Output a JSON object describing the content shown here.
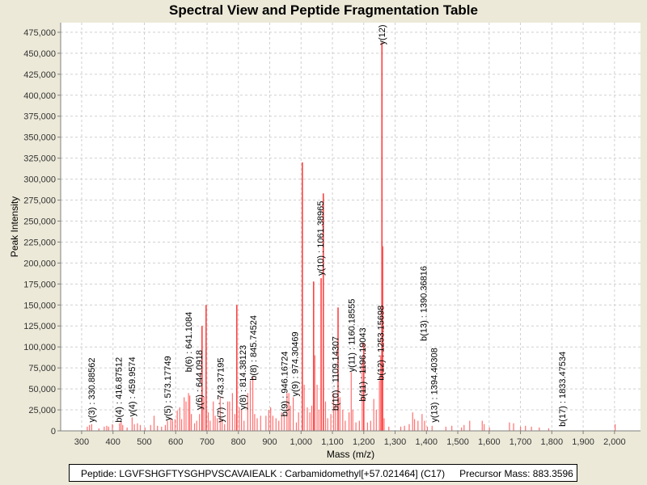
{
  "chart_data": {
    "type": "bar",
    "title": "Spectral View and Peptide Fragmentation Table",
    "xlabel": "Mass (m/z)",
    "ylabel": "Peak Intensity",
    "xlim": [
      233,
      2083
    ],
    "ylim": [
      0,
      486500
    ],
    "xticks": [
      300,
      400,
      500,
      600,
      700,
      800,
      900,
      1000,
      1100,
      1200,
      1300,
      1400,
      1500,
      1600,
      1700,
      1800,
      1900,
      2000
    ],
    "xtick_labels": [
      "300",
      "400",
      "500",
      "600",
      "700",
      "800",
      "900",
      "1,000",
      "1,100",
      "1,200",
      "1,300",
      "1,400",
      "1,500",
      "1,600",
      "1,700",
      "1,800",
      "1,900",
      "2,000"
    ],
    "yticks": [
      0,
      25000,
      50000,
      75000,
      100000,
      125000,
      150000,
      175000,
      200000,
      225000,
      250000,
      275000,
      300000,
      325000,
      350000,
      375000,
      400000,
      425000,
      450000,
      475000
    ],
    "ytick_labels": [
      "0",
      "25,000",
      "50,000",
      "75,000",
      "100,000",
      "125,000",
      "150,000",
      "175,000",
      "200,000",
      "225,000",
      "250,000",
      "275,000",
      "300,000",
      "325,000",
      "350,000",
      "375,000",
      "400,000",
      "425,000",
      "450,000",
      "475,000"
    ],
    "grid": true,
    "color": "#ff4040",
    "peaks": [
      [
        318,
        5000
      ],
      [
        325,
        7000
      ],
      [
        332,
        8000
      ],
      [
        355,
        3000
      ],
      [
        372,
        5000
      ],
      [
        380,
        6000
      ],
      [
        386,
        5000
      ],
      [
        398,
        8000
      ],
      [
        421,
        9000
      ],
      [
        426,
        11000
      ],
      [
        431,
        7000
      ],
      [
        445,
        4000
      ],
      [
        461,
        16000
      ],
      [
        468,
        8000
      ],
      [
        478,
        9000
      ],
      [
        487,
        7000
      ],
      [
        502,
        4000
      ],
      [
        520,
        7000
      ],
      [
        531,
        18000
      ],
      [
        542,
        6000
      ],
      [
        555,
        5000
      ],
      [
        567,
        7000
      ],
      [
        574,
        12000
      ],
      [
        584,
        15000
      ],
      [
        590,
        12000
      ],
      [
        598,
        14000
      ],
      [
        605,
        24000
      ],
      [
        613,
        28000
      ],
      [
        619,
        14000
      ],
      [
        627,
        40000
      ],
      [
        633,
        35000
      ],
      [
        641,
        45000
      ],
      [
        645,
        42000
      ],
      [
        650,
        20000
      ],
      [
        660,
        9000
      ],
      [
        667,
        12000
      ],
      [
        676,
        20000
      ],
      [
        684,
        125000
      ],
      [
        690,
        40000
      ],
      [
        697,
        150000
      ],
      [
        704,
        22000
      ],
      [
        710,
        12000
      ],
      [
        720,
        35000
      ],
      [
        726,
        18000
      ],
      [
        733,
        15000
      ],
      [
        742,
        40000
      ],
      [
        748,
        14000
      ],
      [
        756,
        8000
      ],
      [
        766,
        35000
      ],
      [
        772,
        35000
      ],
      [
        781,
        45000
      ],
      [
        789,
        20000
      ],
      [
        795,
        150000
      ],
      [
        803,
        28000
      ],
      [
        810,
        25000
      ],
      [
        818,
        12000
      ],
      [
        830,
        45000
      ],
      [
        838,
        60000
      ],
      [
        846,
        65000
      ],
      [
        852,
        20000
      ],
      [
        860,
        15000
      ],
      [
        871,
        18000
      ],
      [
        888,
        18000
      ],
      [
        897,
        25000
      ],
      [
        903,
        28000
      ],
      [
        910,
        18000
      ],
      [
        920,
        15000
      ],
      [
        929,
        12000
      ],
      [
        938,
        22000
      ],
      [
        946,
        20000
      ],
      [
        955,
        45000
      ],
      [
        961,
        45000
      ],
      [
        966,
        30000
      ],
      [
        975,
        40000
      ],
      [
        985,
        10000
      ],
      [
        992,
        22000
      ],
      [
        1004,
        320000
      ],
      [
        1010,
        55000
      ],
      [
        1020,
        28000
      ],
      [
        1028,
        22000
      ],
      [
        1034,
        30000
      ],
      [
        1040,
        178000
      ],
      [
        1044,
        90000
      ],
      [
        1051,
        55000
      ],
      [
        1057,
        25000
      ],
      [
        1064,
        182000
      ],
      [
        1071,
        283000
      ],
      [
        1078,
        35000
      ],
      [
        1085,
        15000
      ],
      [
        1095,
        20000
      ],
      [
        1104,
        45000
      ],
      [
        1110,
        32000
      ],
      [
        1118,
        147000
      ],
      [
        1124,
        40000
      ],
      [
        1133,
        25000
      ],
      [
        1141,
        12000
      ],
      [
        1153,
        22000
      ],
      [
        1160,
        70000
      ],
      [
        1165,
        25000
      ],
      [
        1175,
        10000
      ],
      [
        1186,
        12000
      ],
      [
        1195,
        80000
      ],
      [
        1200,
        105000
      ],
      [
        1212,
        10000
      ],
      [
        1222,
        12000
      ],
      [
        1232,
        38000
      ],
      [
        1240,
        25000
      ],
      [
        1250,
        60000
      ],
      [
        1254,
        90000
      ],
      [
        1258,
        463000
      ],
      [
        1260,
        220000
      ],
      [
        1265,
        15000
      ],
      [
        1280,
        5000
      ],
      [
        1318,
        5000
      ],
      [
        1330,
        6000
      ],
      [
        1345,
        8000
      ],
      [
        1356,
        22000
      ],
      [
        1362,
        14000
      ],
      [
        1373,
        12000
      ],
      [
        1386,
        20000
      ],
      [
        1394,
        12000
      ],
      [
        1403,
        5000
      ],
      [
        1418,
        6000
      ],
      [
        1462,
        5000
      ],
      [
        1481,
        6000
      ],
      [
        1512,
        4000
      ],
      [
        1520,
        7000
      ],
      [
        1538,
        12000
      ],
      [
        1578,
        12000
      ],
      [
        1584,
        8000
      ],
      [
        1601,
        4000
      ],
      [
        1665,
        10000
      ],
      [
        1678,
        9000
      ],
      [
        1700,
        5000
      ],
      [
        1716,
        6000
      ],
      [
        1735,
        5000
      ],
      [
        1760,
        4000
      ],
      [
        1790,
        3000
      ],
      [
        2002,
        8000
      ]
    ],
    "annotations": [
      {
        "text": "y(3) : 330.88562",
        "mz": 331,
        "at": 10000
      },
      {
        "text": "b(4) : 416.87512",
        "mz": 417,
        "at": 10000
      },
      {
        "text": "y(4) : 459.9574",
        "mz": 460,
        "at": 17000
      },
      {
        "text": "y(5) : 573.17749",
        "mz": 573,
        "at": 12000
      },
      {
        "text": "y(6) : 644.0918",
        "mz": 644,
        "at": 25000
      },
      {
        "text": "b(6) : 641.1084",
        "mz": 641,
        "at": 70000
      },
      {
        "text": "y(7) : 743.37195",
        "mz": 743,
        "at": 10000
      },
      {
        "text": "y(8) : 814.38123",
        "mz": 814,
        "at": 25000
      },
      {
        "text": "b(8) : 845.74524",
        "mz": 846,
        "at": 60000
      },
      {
        "text": "b(9) : 946.16724",
        "mz": 946,
        "at": 17000
      },
      {
        "text": "y(9) : 974.30469",
        "mz": 974,
        "at": 41000
      },
      {
        "text": "y(10) : 1061.38965",
        "mz": 1061,
        "at": 185000
      },
      {
        "text": "b(10) : 1109.14307",
        "mz": 1109,
        "at": 24000
      },
      {
        "text": "y(11) : 1160.18555",
        "mz": 1160,
        "at": 70000
      },
      {
        "text": "b(11) : 1196.19043",
        "mz": 1196,
        "at": 35000
      },
      {
        "text": "b(12) : 1253.15698",
        "mz": 1253,
        "at": 60000
      },
      {
        "text": "y(12)",
        "mz": 1258,
        "at": 460000
      },
      {
        "text": "y(13) : 1394.40308",
        "mz": 1394,
        "at": 10000
      },
      {
        "text": "b(13) : 1390.36816",
        "mz": 1390,
        "at": 107000
      },
      {
        "text": "b(17) : 1833.47534",
        "mz": 1833,
        "at": 5000
      }
    ]
  },
  "legend": {
    "peptide": "Peptide: LGVFSHGFTYSGHPVSCAVAIEALK : Carbamidomethyl[+57.021464] (C17)",
    "precursor": "Precursor Mass: 883.3596"
  }
}
